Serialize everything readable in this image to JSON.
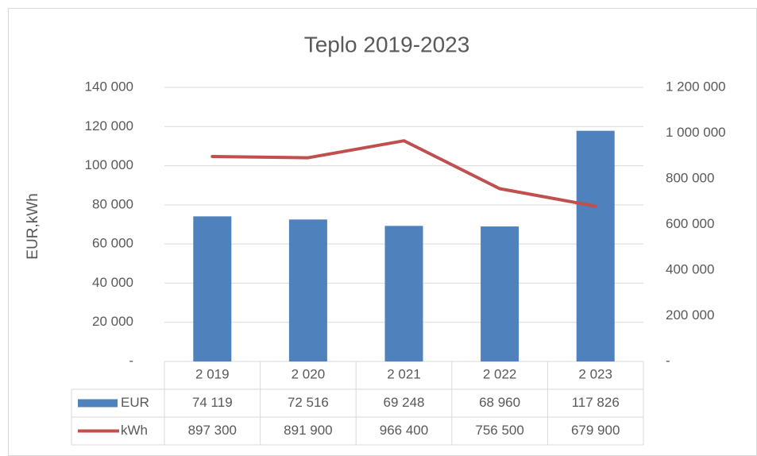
{
  "chart_data": {
    "type": "bar",
    "title": "Teplo 2019-2023",
    "y_label": "EUR,kWh",
    "categories": [
      "2 019",
      "2 020",
      "2 021",
      "2 022",
      "2 023"
    ],
    "series": [
      {
        "name": "EUR",
        "type": "bar",
        "color": "#4f81bd",
        "values": [
          74119,
          72516,
          69248,
          68960,
          117826
        ],
        "value_labels": [
          "74 119",
          "72 516",
          "69 248",
          "68 960",
          "117 826"
        ]
      },
      {
        "name": "kWh",
        "type": "line",
        "axis": "y2",
        "color": "#c0504d",
        "values": [
          897300,
          891900,
          966400,
          756500,
          679900
        ],
        "value_labels": [
          "897 300",
          "891 900",
          "966 400",
          "756 500",
          "679 900"
        ]
      }
    ],
    "ylim": [
      0,
      140000
    ],
    "yticks": [
      {
        "value": 0,
        "label": "-"
      },
      {
        "value": 20000,
        "label": "20 000"
      },
      {
        "value": 40000,
        "label": "40 000"
      },
      {
        "value": 60000,
        "label": "60 000"
      },
      {
        "value": 80000,
        "label": "80 000"
      },
      {
        "value": 100000,
        "label": "100 000"
      },
      {
        "value": 120000,
        "label": "120 000"
      },
      {
        "value": 140000,
        "label": "140 000"
      }
    ],
    "y2lim": [
      0,
      1200000
    ],
    "y2ticks": [
      {
        "value": 0,
        "label": "-"
      },
      {
        "value": 200000,
        "label": "200 000"
      },
      {
        "value": 400000,
        "label": "400 000"
      },
      {
        "value": 600000,
        "label": "600 000"
      },
      {
        "value": 800000,
        "label": "800 000"
      },
      {
        "value": 1000000,
        "label": "1 000 000"
      },
      {
        "value": 1200000,
        "label": "1 200 000"
      }
    ],
    "grid": true
  }
}
